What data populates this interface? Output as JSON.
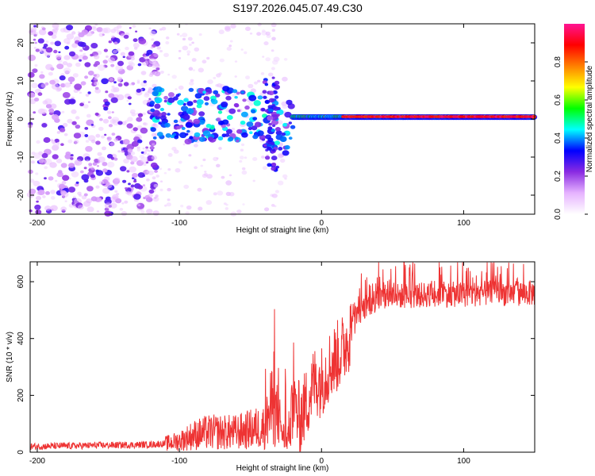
{
  "title": "S197.2026.045.07.49.C30",
  "colors": {
    "line": "#ee3333",
    "axis": "#000000",
    "spec_low": "#e8d4f8",
    "spec_mid": "#7a2cf0"
  },
  "chart_data": [
    {
      "type": "heatmap",
      "xlabel": "Height of straight line (km)",
      "ylabel": "Frequency (Hz)",
      "xlim": [
        -205,
        150
      ],
      "ylim": [
        -25,
        25
      ],
      "xticks": [
        -200,
        -100,
        0,
        100
      ],
      "yticks": [
        -20,
        -10,
        0,
        10,
        20
      ],
      "colorbar": {
        "label": "Normalized spectral amplitude",
        "range": [
          0,
          1
        ],
        "ticks": [
          "0.0",
          "0.2",
          "0.4",
          "0.6",
          "0.8"
        ],
        "tick_values": [
          0,
          0.2,
          0.4,
          0.6,
          0.8
        ],
        "colors": [
          "#ffffff",
          "#e6b3ff",
          "#8a2be2",
          "#0000ff",
          "#00ffff",
          "#00ff00",
          "#ffff00",
          "#ff8000",
          "#ff0000",
          "#ff1493"
        ]
      },
      "description_regions": [
        {
          "x_range": [
            -205,
            -120
          ],
          "freq_range": [
            -25,
            25
          ],
          "amplitude": "scattered low (0.05-0.3)"
        },
        {
          "x_range": [
            -120,
            -20
          ],
          "freq_range": [
            -12,
            14
          ],
          "amplitude": "blobs 0.2-0.6"
        },
        {
          "x_range": [
            -20,
            150
          ],
          "freq_range": [
            -1,
            2
          ],
          "amplitude": "continuous band 0.6-0.9 at ~0.5 Hz"
        }
      ]
    },
    {
      "type": "line",
      "xlabel": "Height of straight line (km)",
      "ylabel": "SNR (10 * v/v)",
      "xlim": [
        -205,
        150
      ],
      "ylim": [
        0,
        670
      ],
      "xticks": [
        -200,
        -100,
        0,
        100
      ],
      "yticks": [
        0,
        200,
        400,
        600
      ],
      "series": [
        {
          "name": "SNR",
          "x": [
            -205,
            -180,
            -160,
            -140,
            -120,
            -110,
            -100,
            -90,
            -80,
            -70,
            -60,
            -50,
            -40,
            -35,
            -30,
            -25,
            -20,
            -15,
            -10,
            -5,
            0,
            5,
            10,
            15,
            20,
            25,
            30,
            40,
            50,
            60,
            80,
            100,
            120,
            140,
            150
          ],
          "values": [
            20,
            22,
            24,
            25,
            27,
            30,
            40,
            60,
            70,
            70,
            70,
            80,
            90,
            160,
            120,
            25,
            150,
            120,
            180,
            250,
            250,
            300,
            330,
            360,
            420,
            480,
            510,
            540,
            550,
            550,
            555,
            555,
            560,
            560,
            560
          ]
        }
      ]
    }
  ]
}
